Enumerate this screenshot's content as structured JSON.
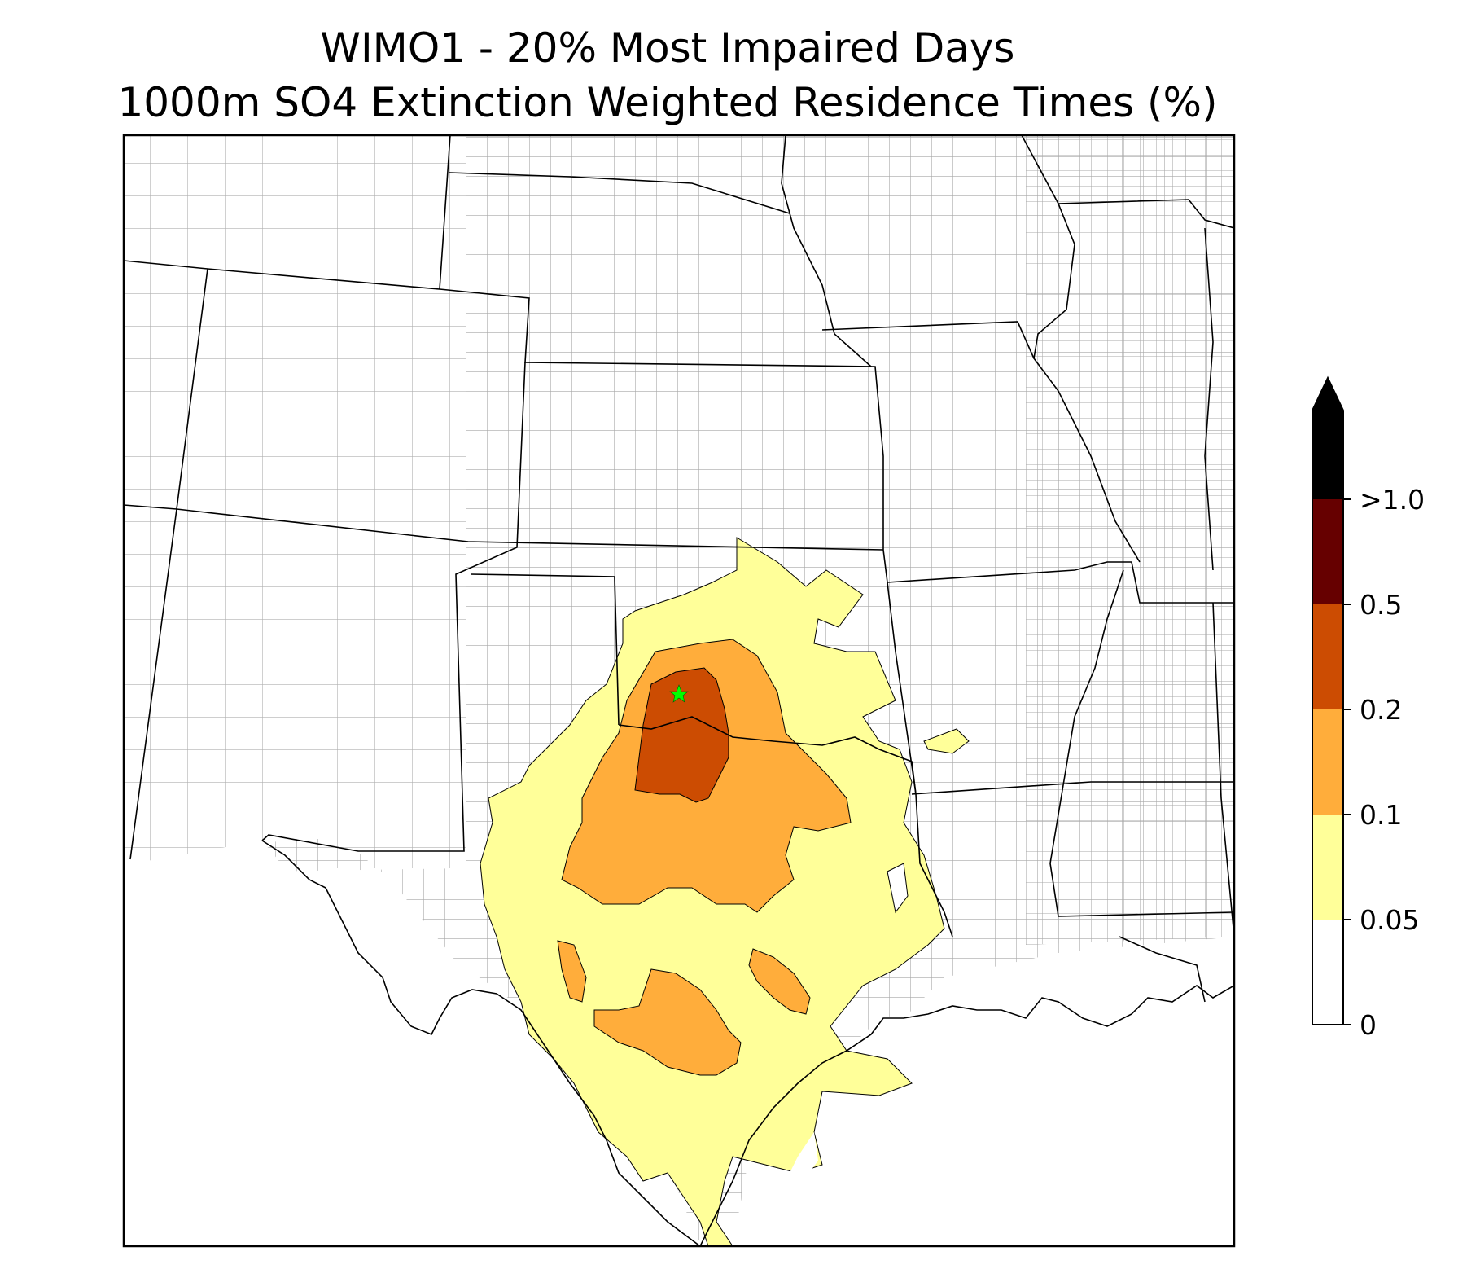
{
  "title": {
    "line1": "WIMO1 - 20% Most Impaired Days",
    "line2": "1000m SO4 Extinction Weighted Residence Times (%)"
  },
  "map": {
    "site_marker": "green-star-icon",
    "site_color": "#00ff00",
    "state_line_color": "#000000",
    "county_line_color": "#a0a0a0"
  },
  "colorbar": {
    "extend": "max",
    "ticks": [
      "0",
      "0.05",
      "0.1",
      "0.2",
      "0.5",
      ">1.0"
    ],
    "bins": [
      {
        "from": "0",
        "to": "0.05",
        "color": "#ffffff"
      },
      {
        "from": "0.05",
        "to": "0.1",
        "color": "#ffff99"
      },
      {
        "from": "0.1",
        "to": "0.2",
        "color": "#ffad3b"
      },
      {
        "from": "0.2",
        "to": "0.5",
        "color": "#cc4c02"
      },
      {
        "from": "0.5",
        "to": ">1.0",
        "color": "#660000"
      },
      {
        "from": ">1.0",
        "to": "",
        "color": "#000000"
      }
    ]
  }
}
